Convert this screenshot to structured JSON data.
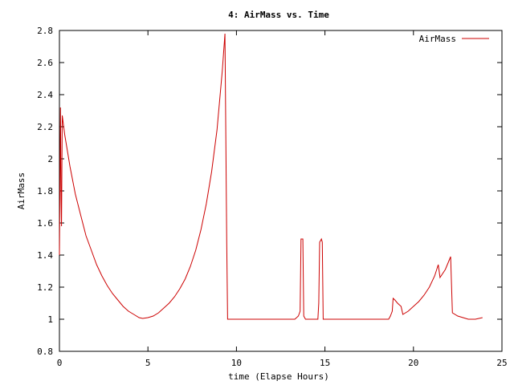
{
  "chart_data": {
    "type": "line",
    "title": "4: AirMass vs. Time",
    "xlabel": "time (Elapse Hours)",
    "ylabel": "AirMass",
    "xlim": [
      0,
      25
    ],
    "ylim": [
      0.8,
      2.8
    ],
    "xticks": [
      0,
      5,
      10,
      15,
      20,
      25
    ],
    "yticks": [
      0.8,
      1,
      1.2,
      1.4,
      1.6,
      1.8,
      2,
      2.2,
      2.4,
      2.6,
      2.8
    ],
    "ytick_labels": [
      "0.8",
      "1",
      "1.2",
      "1.4",
      "1.6",
      "1.8",
      "2",
      "2.2",
      "2.4",
      "2.6",
      "2.8"
    ],
    "grid": false,
    "legend_position": "top-right",
    "series": [
      {
        "name": "AirMass",
        "color": "#cc0000",
        "points": [
          [
            0.0,
            1.4
          ],
          [
            0.03,
            1.9
          ],
          [
            0.06,
            2.32
          ],
          [
            0.09,
            1.75
          ],
          [
            0.12,
            1.58
          ],
          [
            0.16,
            2.27
          ],
          [
            0.3,
            2.15
          ],
          [
            0.6,
            1.95
          ],
          [
            0.9,
            1.78
          ],
          [
            1.2,
            1.65
          ],
          [
            1.5,
            1.52
          ],
          [
            1.8,
            1.43
          ],
          [
            2.1,
            1.34
          ],
          [
            2.4,
            1.27
          ],
          [
            2.7,
            1.21
          ],
          [
            3.0,
            1.16
          ],
          [
            3.3,
            1.12
          ],
          [
            3.6,
            1.08
          ],
          [
            3.9,
            1.05
          ],
          [
            4.2,
            1.03
          ],
          [
            4.5,
            1.01
          ],
          [
            4.7,
            1.005
          ],
          [
            5.0,
            1.01
          ],
          [
            5.3,
            1.02
          ],
          [
            5.6,
            1.04
          ],
          [
            5.9,
            1.07
          ],
          [
            6.2,
            1.1
          ],
          [
            6.5,
            1.14
          ],
          [
            6.8,
            1.19
          ],
          [
            7.1,
            1.25
          ],
          [
            7.4,
            1.33
          ],
          [
            7.7,
            1.43
          ],
          [
            8.0,
            1.56
          ],
          [
            8.3,
            1.72
          ],
          [
            8.6,
            1.92
          ],
          [
            8.9,
            2.18
          ],
          [
            9.2,
            2.55
          ],
          [
            9.35,
            2.78
          ],
          [
            9.45,
            1.48
          ],
          [
            9.5,
            1.0
          ],
          [
            13.3,
            1.0
          ],
          [
            13.5,
            1.02
          ],
          [
            13.6,
            1.05
          ],
          [
            13.65,
            1.5
          ],
          [
            13.75,
            1.5
          ],
          [
            13.8,
            1.02
          ],
          [
            13.9,
            1.0
          ],
          [
            14.6,
            1.0
          ],
          [
            14.65,
            1.1
          ],
          [
            14.7,
            1.48
          ],
          [
            14.8,
            1.5
          ],
          [
            14.85,
            1.48
          ],
          [
            14.9,
            1.0
          ],
          [
            18.6,
            1.0
          ],
          [
            18.7,
            1.02
          ],
          [
            18.8,
            1.05
          ],
          [
            18.85,
            1.13
          ],
          [
            18.95,
            1.12
          ],
          [
            19.1,
            1.1
          ],
          [
            19.3,
            1.08
          ],
          [
            19.4,
            1.03
          ],
          [
            19.7,
            1.05
          ],
          [
            20.0,
            1.08
          ],
          [
            20.3,
            1.11
          ],
          [
            20.6,
            1.15
          ],
          [
            20.9,
            1.2
          ],
          [
            21.2,
            1.27
          ],
          [
            21.4,
            1.34
          ],
          [
            21.5,
            1.26
          ],
          [
            21.8,
            1.31
          ],
          [
            22.1,
            1.39
          ],
          [
            22.2,
            1.04
          ],
          [
            22.5,
            1.02
          ],
          [
            22.8,
            1.01
          ],
          [
            23.1,
            1.0
          ],
          [
            23.5,
            1.0
          ],
          [
            23.9,
            1.01
          ]
        ]
      }
    ]
  }
}
